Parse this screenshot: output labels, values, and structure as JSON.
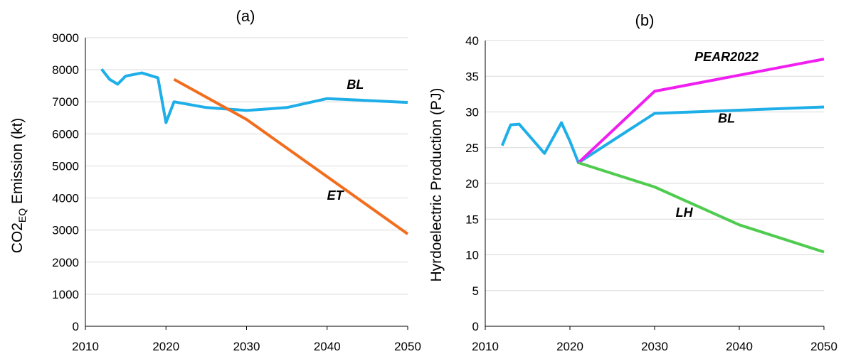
{
  "chart_data": [
    {
      "type": "line",
      "title": "(a)",
      "xlabel": "",
      "ylabel_main": "CO2",
      "ylabel_sub": "EQ",
      "ylabel_rest": " Emission (kt)",
      "xlim": [
        2010,
        2050
      ],
      "ylim": [
        0,
        9000
      ],
      "xticks": [
        "2010",
        "2020",
        "2030",
        "2040",
        "2050"
      ],
      "yticks": [
        "0",
        "1000",
        "2000",
        "3000",
        "4000",
        "5000",
        "6000",
        "7000",
        "8000",
        "9000"
      ],
      "grid": "horizontal",
      "series": [
        {
          "name": "BL",
          "color": "#1eaee8",
          "points": [
            [
              2012,
              8020
            ],
            [
              2013,
              7700
            ],
            [
              2014,
              7550
            ],
            [
              2015,
              7800
            ],
            [
              2017,
              7900
            ],
            [
              2019,
              7750
            ],
            [
              2020,
              6350
            ],
            [
              2021,
              7000
            ],
            [
              2025,
              6820
            ],
            [
              2030,
              6730
            ],
            [
              2035,
              6820
            ],
            [
              2040,
              7100
            ],
            [
              2050,
              6980
            ]
          ]
        },
        {
          "name": "ET",
          "color": "#f26d1d",
          "points": [
            [
              2021,
              7700
            ],
            [
              2030,
              6450
            ],
            [
              2050,
              2880
            ]
          ]
        }
      ],
      "annotations": [
        {
          "text": "BL",
          "x": 2043.5,
          "y": 7400
        },
        {
          "text": "ET",
          "x": 2041,
          "y": 3950
        }
      ]
    },
    {
      "type": "line",
      "title": "(b)",
      "xlabel": "",
      "ylabel": "Hyrdoelectric Production (PJ)",
      "xlim": [
        2010,
        2050
      ],
      "ylim": [
        0,
        40
      ],
      "xticks": [
        "2010",
        "2020",
        "2030",
        "2040",
        "2050"
      ],
      "yticks": [
        "0",
        "5",
        "10",
        "15",
        "20",
        "25",
        "30",
        "35",
        "40"
      ],
      "grid": "horizontal",
      "series": [
        {
          "name": "BL",
          "color": "#1eaee8",
          "points": [
            [
              2012,
              25.3
            ],
            [
              2013,
              28.2
            ],
            [
              2014,
              28.3
            ],
            [
              2017,
              24.2
            ],
            [
              2019,
              28.5
            ],
            [
              2020,
              25.9
            ],
            [
              2021,
              22.9
            ],
            [
              2030,
              29.8
            ],
            [
              2050,
              30.7
            ]
          ]
        },
        {
          "name": "PEAR2022",
          "color": "#f01ef0",
          "points": [
            [
              2021,
              22.9
            ],
            [
              2030,
              32.9
            ],
            [
              2050,
              37.4
            ]
          ]
        },
        {
          "name": "LH",
          "color": "#4fcc4f",
          "points": [
            [
              2021,
              22.9
            ],
            [
              2030,
              19.5
            ],
            [
              2040,
              14.2
            ],
            [
              2050,
              10.4
            ]
          ]
        }
      ],
      "annotations": [
        {
          "text": "PEAR2022",
          "x": 2038.5,
          "y": 37.1
        },
        {
          "text": "BL",
          "x": 2038.5,
          "y": 28.5
        },
        {
          "text": "LH",
          "x": 2033.5,
          "y": 15.3
        }
      ]
    }
  ]
}
